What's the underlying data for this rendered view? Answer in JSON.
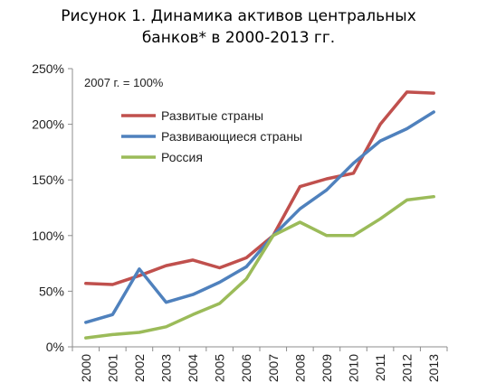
{
  "chart_data": {
    "type": "line",
    "title_line1": "Рисунок 1. Динамика активов центральных",
    "title_line2": "банков* в 2000-2013 гг.",
    "note": "2007 г. = 100%",
    "xlabel": "",
    "ylabel": "",
    "ylim": [
      0,
      250
    ],
    "yticks": [
      0,
      50,
      100,
      150,
      200,
      250
    ],
    "ytick_labels": [
      "0%",
      "50%",
      "100%",
      "150%",
      "200%",
      "250%"
    ],
    "grid": false,
    "legend_position": "top-left",
    "categories": [
      "2000",
      "2001",
      "2002",
      "2003",
      "2004",
      "2005",
      "2006",
      "2007",
      "2008",
      "2009",
      "2010",
      "2011",
      "2012",
      "2013"
    ],
    "series": [
      {
        "name": "Развитые страны",
        "color": "#c0504d",
        "values": [
          57,
          56,
          64,
          73,
          78,
          71,
          80,
          100,
          144,
          151,
          156,
          200,
          229,
          228
        ]
      },
      {
        "name": "Развивающиеся страны",
        "color": "#4f81bd",
        "values": [
          22,
          29,
          70,
          40,
          47,
          58,
          72,
          100,
          124,
          141,
          165,
          185,
          196,
          211
        ]
      },
      {
        "name": "Россия",
        "color": "#9bbb59",
        "values": [
          8,
          11,
          13,
          18,
          29,
          39,
          61,
          100,
          112,
          100,
          100,
          115,
          132,
          135
        ]
      }
    ]
  }
}
